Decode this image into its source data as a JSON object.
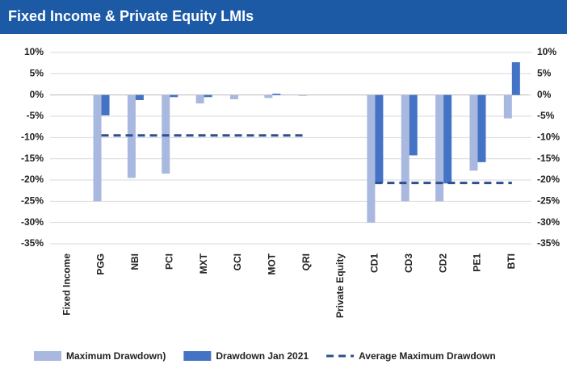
{
  "chart_data": {
    "type": "bar",
    "title": "Fixed Income & Private Equity LMIs",
    "categories": [
      "Fixed Income",
      "PGG",
      "NBI",
      "PCI",
      "MXT",
      "GCI",
      "MOT",
      "QRI",
      "Private Equity",
      "CD1",
      "CD3",
      "CD2",
      "PE1",
      "BTI"
    ],
    "series": [
      {
        "name": "Maximum Drawdown)",
        "color": "#a9b8df",
        "values": [
          null,
          -25,
          -19.5,
          -18.5,
          -2,
          -1,
          -0.7,
          -0.2,
          null,
          -30,
          -25,
          -25,
          -17.8,
          -5.5
        ]
      },
      {
        "name": "Drawdown Jan 2021",
        "color": "#4472c4",
        "values": [
          null,
          -4.8,
          -1.2,
          -0.5,
          -0.5,
          0,
          0.3,
          0,
          null,
          -20.8,
          -14.2,
          -20.8,
          -15.8,
          7.7
        ]
      },
      {
        "name": "Average Maximum Drawdown",
        "color": "#2e4f8e",
        "type": "line",
        "dashed": true,
        "values": [
          null,
          -9.5,
          -9.5,
          -9.5,
          -9.5,
          -9.5,
          -9.5,
          -9.5,
          null,
          -20.7,
          -20.7,
          -20.7,
          -20.7,
          -20.7
        ]
      }
    ],
    "ylim": [
      -35,
      10
    ],
    "yticks": [
      {
        "value": -35,
        "label": "-35%"
      },
      {
        "value": -30,
        "label": "-30%"
      },
      {
        "value": -25,
        "label": "-25%"
      },
      {
        "value": -20,
        "label": "-20%"
      },
      {
        "value": -15,
        "label": "-15%"
      },
      {
        "value": -10,
        "label": "-10%"
      },
      {
        "value": -5,
        "label": "-5%"
      },
      {
        "value": 0,
        "label": "0%"
      },
      {
        "value": 5,
        "label": "5%"
      },
      {
        "value": 10,
        "label": "10%"
      }
    ],
    "y2lim": [
      -35,
      10
    ],
    "y2ticks": [
      {
        "value": -35,
        "label": "-35%"
      },
      {
        "value": -30,
        "label": "-30%"
      },
      {
        "value": -25,
        "label": "-25%"
      },
      {
        "value": -20,
        "label": "-20%"
      },
      {
        "value": -15,
        "label": "-15%"
      },
      {
        "value": -10,
        "label": "-10%"
      },
      {
        "value": -5,
        "label": "-5%"
      },
      {
        "value": 0,
        "label": "0%"
      },
      {
        "value": 5,
        "label": "5%"
      },
      {
        "value": 10,
        "label": "10%"
      }
    ],
    "grid": true,
    "legend": "bottom"
  }
}
